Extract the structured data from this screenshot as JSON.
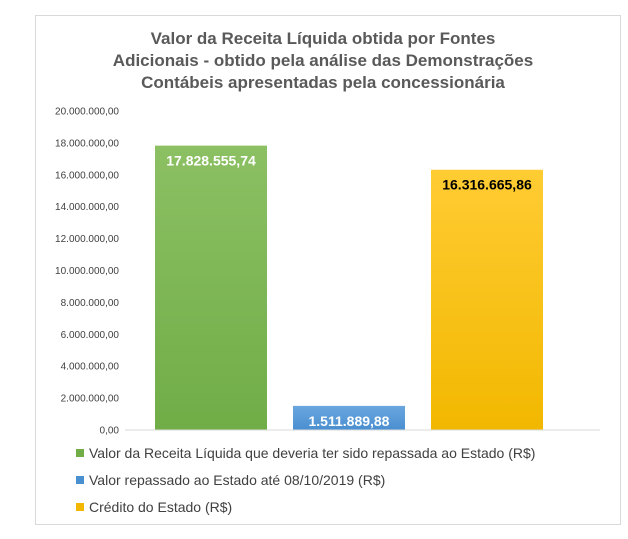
{
  "chart_data": {
    "type": "bar",
    "title_lines": [
      "Valor da Receita Líquida  obtida por Fontes",
      "Adicionais - obtido pela análise das Demonstrações",
      "Contábeis apresentadas pela concessionária"
    ],
    "ylim": [
      0,
      20000000
    ],
    "yticks": [
      0,
      2000000,
      4000000,
      6000000,
      8000000,
      10000000,
      12000000,
      14000000,
      16000000,
      18000000,
      20000000
    ],
    "ytick_labels": [
      "0,00",
      "2.000.000,00",
      "4.000.000,00",
      "6.000.000,00",
      "8.000.000,00",
      "10.000.000,00",
      "12.000.000,00",
      "14.000.000,00",
      "16.000.000,00",
      "18.000.000,00",
      "20.000.000,00"
    ],
    "gridlines": false,
    "legend_position": "bottom",
    "series": [
      {
        "name": "Valor da Receita Líquida que deveria ter sido repassada ao Estado (R$)",
        "value": 17828555.74,
        "label": "17.828.555,74",
        "color": "#70ad47",
        "color_light": "#8cc063",
        "label_color": "#ffffff"
      },
      {
        "name": "Valor repassado ao Estado até 08/10/2019 (R$)",
        "value": 1511889.88,
        "label": "1.511.889,88",
        "color": "#4a8fd0",
        "color_light": "#6aa6df",
        "label_color": "#ffffff"
      },
      {
        "name": "Crédito do Estado (R$)",
        "value": 16316665.86,
        "label": "16.316.665,86",
        "color": "#f2b800",
        "color_light": "#ffcc33",
        "label_color": "#000000"
      }
    ]
  }
}
